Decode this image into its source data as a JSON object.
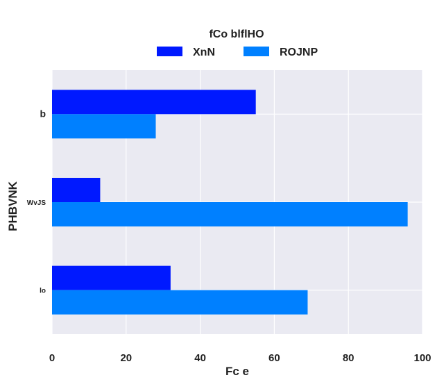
{
  "chart_data": {
    "type": "bar",
    "orientation": "horizontal",
    "categories": [
      "b",
      "WvJS",
      "lo"
    ],
    "series": [
      {
        "name": "XnN",
        "color": "#0019ff",
        "values": [
          55,
          13,
          32
        ]
      },
      {
        "name": "ROJNP",
        "color": "#0080ff",
        "values": [
          28,
          96,
          69
        ]
      }
    ],
    "legend_title": "fCo blflHO",
    "legend_position": "top-center",
    "xlabel": "Fc e",
    "ylabel": "PHBVNK",
    "xlim": [
      0,
      100
    ],
    "xticks": [
      "0",
      "20",
      "40",
      "60",
      "80",
      "100"
    ],
    "grid": true,
    "background": "#eaeaf2"
  }
}
